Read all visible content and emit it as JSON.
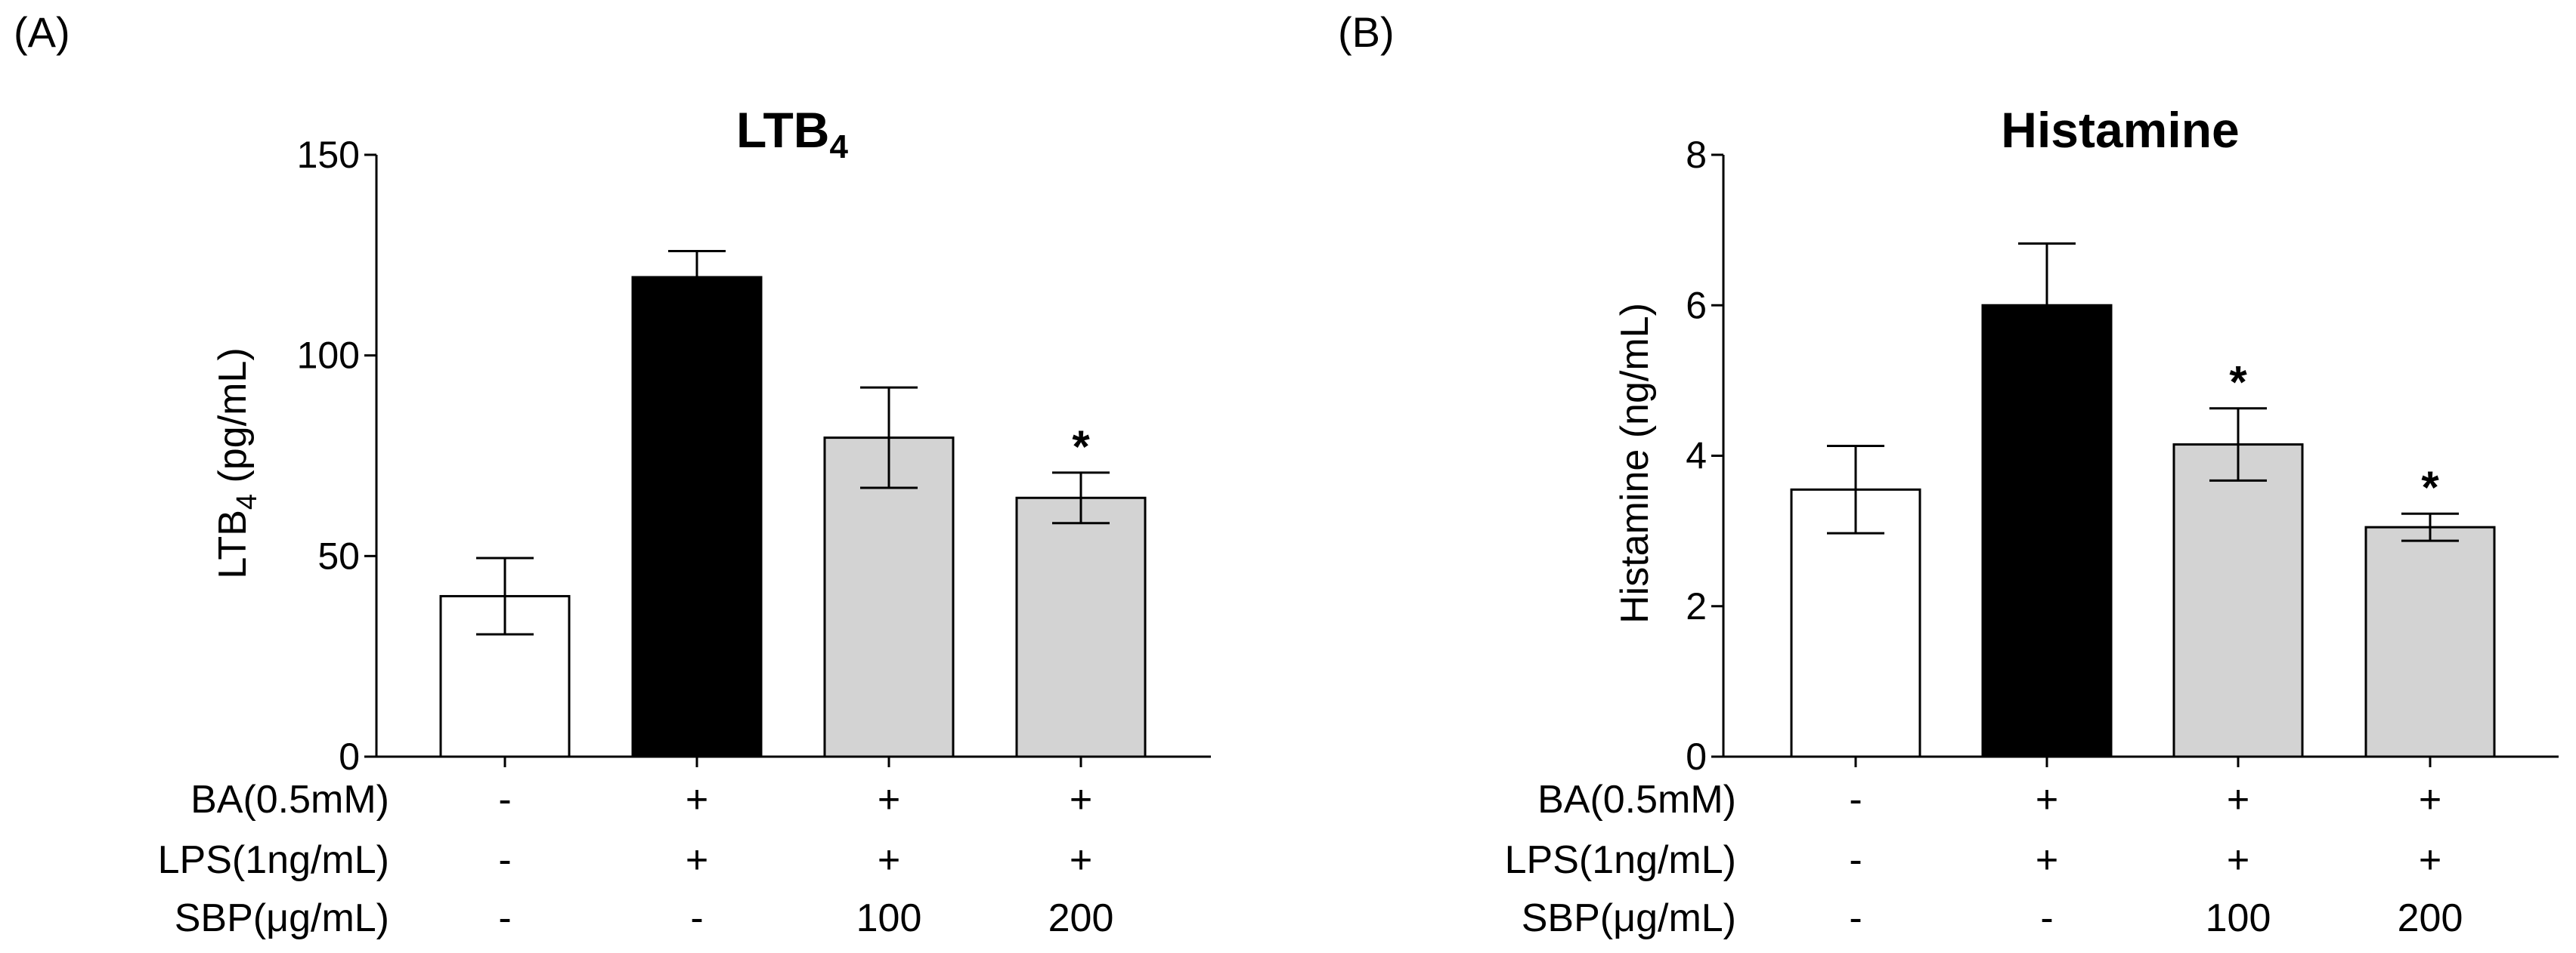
{
  "chart_data": [
    {
      "panel_label": "(A)",
      "type": "bar",
      "title_main": "LTB",
      "title_sub": "4",
      "ylabel_main": "LTB",
      "ylabel_sub": "4",
      "ylabel_rest": " (pg/mL)",
      "ylim": [
        0,
        150
      ],
      "yticks": [
        0,
        50,
        100,
        150
      ],
      "ytick_labels": [
        "0",
        "50",
        "100",
        "150"
      ],
      "values": [
        40,
        119.5,
        79.5,
        64.5
      ],
      "errors": [
        9.5,
        6.5,
        12.5,
        6.3
      ],
      "bar_colors": [
        "#ffffff",
        "#000000",
        "#d3d3d3",
        "#d3d3d3"
      ],
      "significance": [
        "",
        "",
        "",
        "*"
      ]
    },
    {
      "panel_label": "(B)",
      "type": "bar",
      "title_main": "Histamine",
      "title_sub": "",
      "ylabel_main": "Histamine (ng/mL)",
      "ylabel_sub": "",
      "ylabel_rest": "",
      "ylim": [
        0,
        8
      ],
      "yticks": [
        0,
        2,
        4,
        6,
        8
      ],
      "ytick_labels": [
        "0",
        "2",
        "4",
        "6",
        "8"
      ],
      "values": [
        3.55,
        6.0,
        4.15,
        3.05
      ],
      "errors": [
        0.58,
        0.82,
        0.48,
        0.18
      ],
      "bar_colors": [
        "#ffffff",
        "#000000",
        "#d3d3d3",
        "#d3d3d3"
      ],
      "significance": [
        "",
        "",
        "*",
        "*"
      ]
    }
  ],
  "conditions": {
    "rows": [
      {
        "label": "BA(0.5mM)",
        "cells": [
          "-",
          "+",
          "+",
          "+"
        ]
      },
      {
        "label": "LPS(1ng/mL)",
        "cells": [
          "-",
          "+",
          "+",
          "+"
        ]
      },
      {
        "label": "SBP(μg/mL)",
        "cells": [
          "-",
          "-",
          "100",
          "200"
        ]
      }
    ]
  }
}
